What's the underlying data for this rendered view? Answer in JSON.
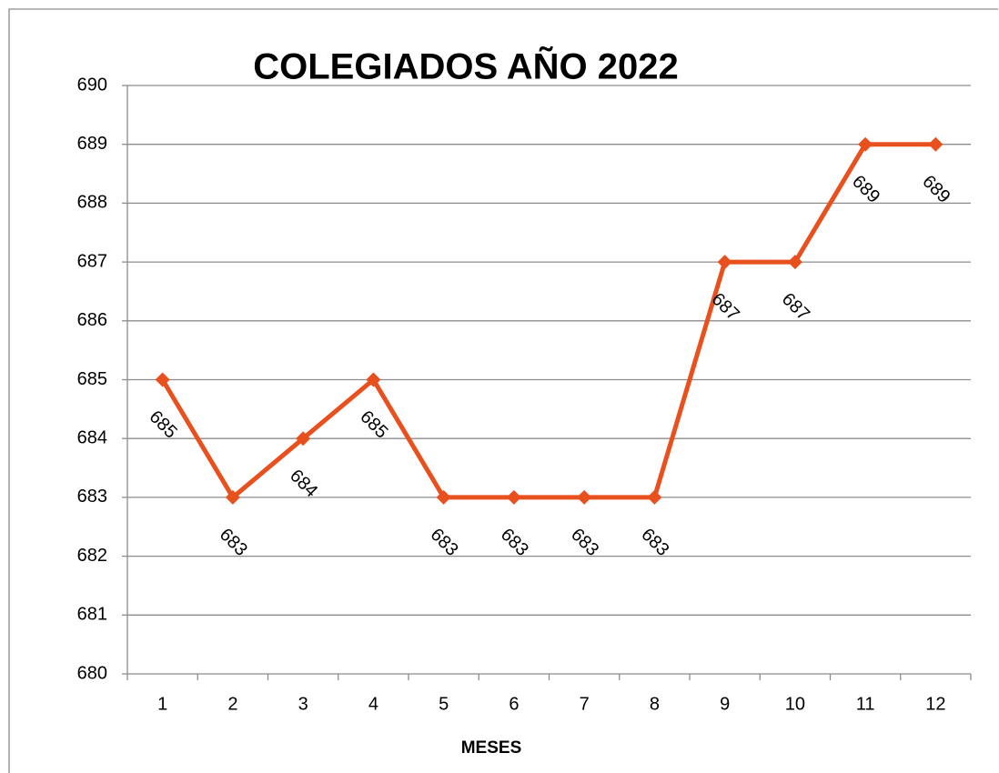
{
  "chart_data": {
    "type": "line",
    "title": "COLEGIADOS AÑO 2022",
    "x_label": "MESES",
    "categories": [
      "1",
      "2",
      "3",
      "4",
      "5",
      "6",
      "7",
      "8",
      "9",
      "10",
      "11",
      "12"
    ],
    "series": [
      {
        "name": "Colegiados",
        "color": "#e8501e",
        "values": [
          685,
          683,
          684,
          685,
          683,
          683,
          683,
          683,
          687,
          687,
          689,
          689
        ]
      }
    ],
    "ylim": [
      680,
      690
    ],
    "yticks": [
      680,
      681,
      682,
      683,
      684,
      685,
      686,
      687,
      688,
      689,
      690
    ],
    "grid": true
  }
}
